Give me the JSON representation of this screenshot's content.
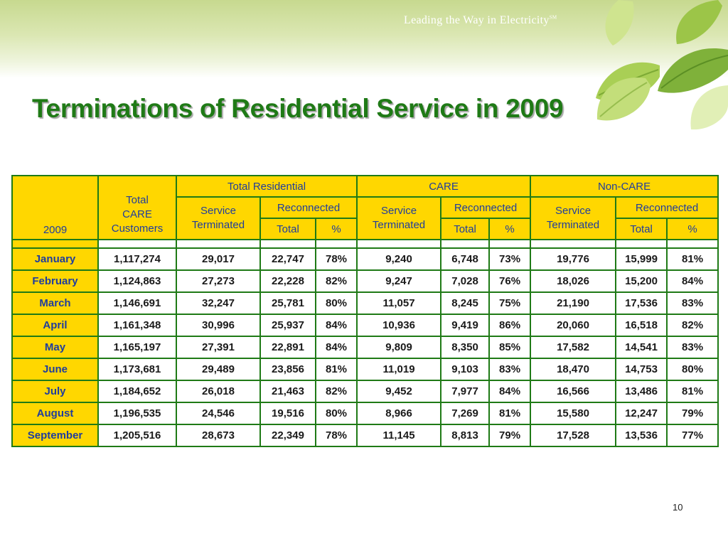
{
  "header": {
    "tagline": "Leading the Way in Electricity",
    "tm": "SM"
  },
  "slide": {
    "title": "Terminations of Residential Service in 2009",
    "page_number": "10"
  },
  "table": {
    "groups": [
      "Total Residential",
      "CARE",
      "Non-CARE"
    ],
    "year_label": "2009",
    "care_customers_label": [
      "Total",
      "CARE",
      "Customers"
    ],
    "service_label": "Service",
    "terminated_label": "Terminated",
    "reconnected_label": "Reconnected",
    "total_label": "Total",
    "percent_label": "%",
    "rows": [
      {
        "month": "January",
        "care_customers": "1,117,274",
        "tr_terminated": "29,017",
        "tr_total": "22,747",
        "tr_pct": "78%",
        "care_terminated": "9,240",
        "care_total": "6,748",
        "care_pct": "73%",
        "non_terminated": "19,776",
        "non_total": "15,999",
        "non_pct": "81%"
      },
      {
        "month": "February",
        "care_customers": "1,124,863",
        "tr_terminated": "27,273",
        "tr_total": "22,228",
        "tr_pct": "82%",
        "care_terminated": "9,247",
        "care_total": "7,028",
        "care_pct": "76%",
        "non_terminated": "18,026",
        "non_total": "15,200",
        "non_pct": "84%"
      },
      {
        "month": "March",
        "care_customers": "1,146,691",
        "tr_terminated": "32,247",
        "tr_total": "25,781",
        "tr_pct": "80%",
        "care_terminated": "11,057",
        "care_total": "8,245",
        "care_pct": "75%",
        "non_terminated": "21,190",
        "non_total": "17,536",
        "non_pct": "83%"
      },
      {
        "month": "April",
        "care_customers": "1,161,348",
        "tr_terminated": "30,996",
        "tr_total": "25,937",
        "tr_pct": "84%",
        "care_terminated": "10,936",
        "care_total": "9,419",
        "care_pct": "86%",
        "non_terminated": "20,060",
        "non_total": "16,518",
        "non_pct": "82%"
      },
      {
        "month": "May",
        "care_customers": "1,165,197",
        "tr_terminated": "27,391",
        "tr_total": "22,891",
        "tr_pct": "84%",
        "care_terminated": "9,809",
        "care_total": "8,350",
        "care_pct": "85%",
        "non_terminated": "17,582",
        "non_total": "14,541",
        "non_pct": "83%"
      },
      {
        "month": "June",
        "care_customers": "1,173,681",
        "tr_terminated": "29,489",
        "tr_total": "23,856",
        "tr_pct": "81%",
        "care_terminated": "11,019",
        "care_total": "9,103",
        "care_pct": "83%",
        "non_terminated": "18,470",
        "non_total": "14,753",
        "non_pct": "80%"
      },
      {
        "month": "July",
        "care_customers": "1,184,652",
        "tr_terminated": "26,018",
        "tr_total": "21,463",
        "tr_pct": "82%",
        "care_terminated": "9,452",
        "care_total": "7,977",
        "care_pct": "84%",
        "non_terminated": "16,566",
        "non_total": "13,486",
        "non_pct": "81%"
      },
      {
        "month": "August",
        "care_customers": "1,196,535",
        "tr_terminated": "24,546",
        "tr_total": "19,516",
        "tr_pct": "80%",
        "care_terminated": "8,966",
        "care_total": "7,269",
        "care_pct": "81%",
        "non_terminated": "15,580",
        "non_total": "12,247",
        "non_pct": "79%"
      },
      {
        "month": "September",
        "care_customers": "1,205,516",
        "tr_terminated": "28,673",
        "tr_total": "22,349",
        "tr_pct": "78%",
        "care_terminated": "11,145",
        "care_total": "8,813",
        "care_pct": "79%",
        "non_terminated": "17,528",
        "non_total": "13,536",
        "non_pct": "77%"
      }
    ]
  },
  "colors": {
    "title_green": "#1f7a16",
    "header_yellow": "#ffd700",
    "header_text_blue": "#1f3d9e",
    "border_green": "#1f7a16"
  }
}
